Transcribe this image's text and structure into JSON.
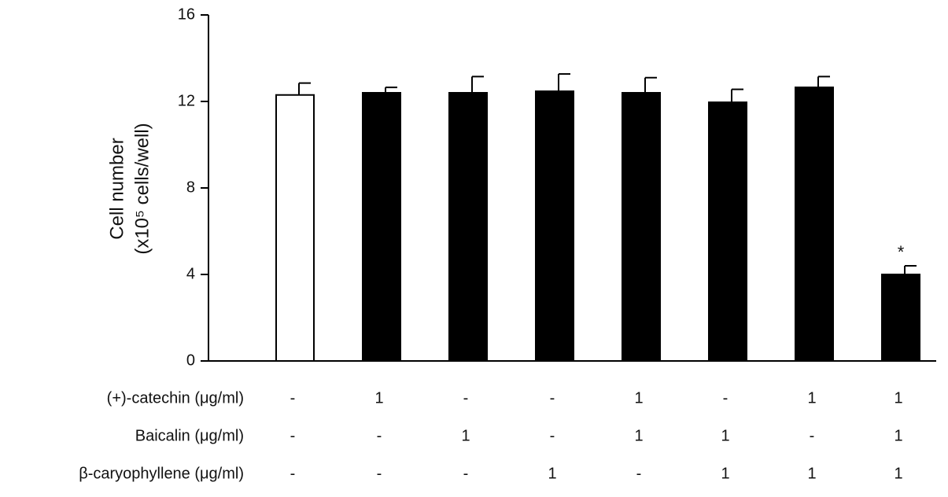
{
  "chart_data": {
    "type": "bar",
    "y_label": [
      "Cell number",
      "(x10⁵ cells/well)"
    ],
    "categories": [
      null,
      null,
      null,
      null,
      null,
      null,
      null,
      null
    ],
    "values": [
      12.3,
      12.4,
      12.4,
      12.47,
      12.4,
      11.96,
      12.65,
      4.0
    ],
    "errors": [
      0.55,
      0.25,
      0.75,
      0.8,
      0.7,
      0.6,
      0.5,
      0.4
    ],
    "colors": [
      "#ffffff",
      "#000000",
      "#000000",
      "#000000",
      "#000000",
      "#000000",
      "#000000",
      "#000000"
    ],
    "annotations": [
      {
        "index": 7,
        "text": "*"
      }
    ],
    "ylim": [
      0,
      16
    ],
    "yticks": [
      0,
      4,
      8,
      12,
      16
    ],
    "conditions": [
      {
        "label": "(+)-catechin (μg/ml)",
        "values": [
          "-",
          "1",
          "-",
          "-",
          "1",
          "-",
          "1",
          "1"
        ]
      },
      {
        "label": "Baicalin (μg/ml)",
        "values": [
          "-",
          "-",
          "1",
          "-",
          "1",
          "1",
          "-",
          "1"
        ]
      },
      {
        "label": "β-caryophyllene (μg/ml)",
        "values": [
          "-",
          "-",
          "-",
          "1",
          "-",
          "1",
          "1",
          "1"
        ]
      }
    ]
  }
}
